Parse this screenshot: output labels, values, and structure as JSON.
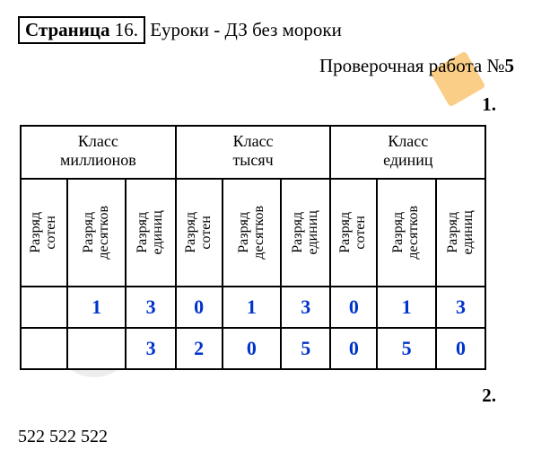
{
  "watermark_text": "euroki",
  "header": {
    "page_label": "Страница",
    "page_number": "16.",
    "tagline": " Еуроки - ДЗ без мороки"
  },
  "subtitle": {
    "text": "Проверочная работа №",
    "num": "5"
  },
  "task1_label": "1.",
  "task2_label": "2.",
  "table": {
    "classes": [
      "Класс\nмиллионов",
      "Класс\nтысяч",
      "Класс\nединиц"
    ],
    "ranks": [
      "Разряд\nсотен",
      "Разряд\nдесятков",
      "Разряд\nединиц",
      "Разряд\nсотен",
      "Разряд\nдесятков",
      "Разряд\nединиц",
      "Разряд\nсотен",
      "Разряд\nдесятков",
      "Разряд\nединиц"
    ],
    "rows": [
      [
        "",
        "1",
        "3",
        "0",
        "1",
        "3",
        "0",
        "1",
        "3"
      ],
      [
        "",
        "",
        "3",
        "2",
        "0",
        "5",
        "0",
        "5",
        "0"
      ]
    ],
    "value_color": "#0033cc"
  },
  "bottom_number": "522 522 522"
}
